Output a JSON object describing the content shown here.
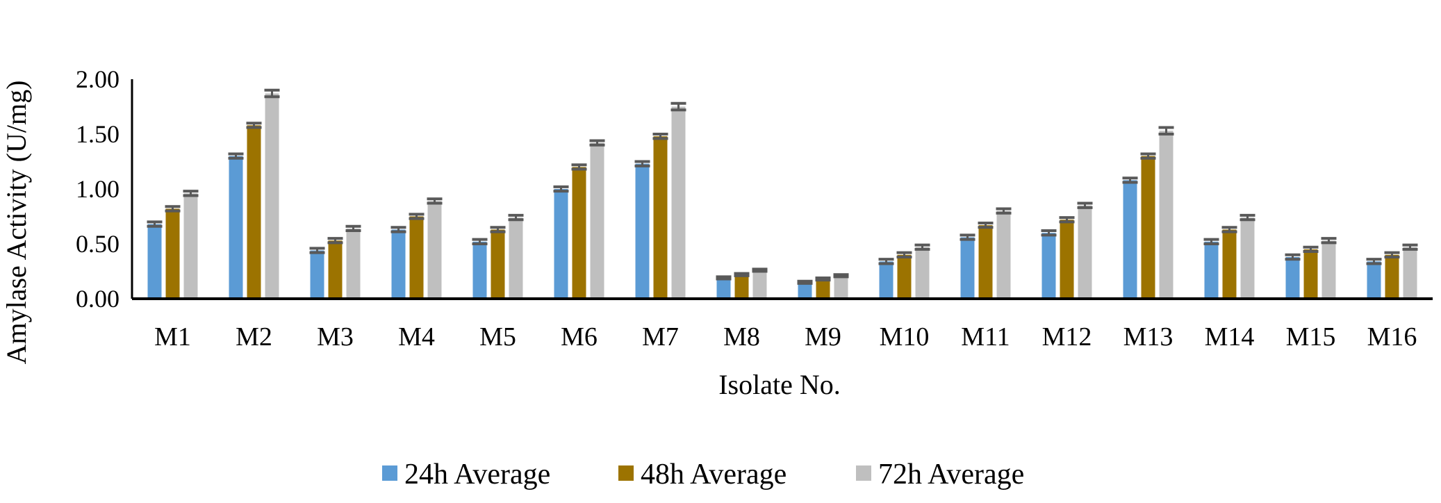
{
  "chart_data": {
    "type": "bar",
    "title": "",
    "xlabel": "Isolate No.",
    "ylabel": "Amylase Activity (U/mg)",
    "ylim": [
      0,
      2
    ],
    "yticks": [
      "0.00",
      "0.50",
      "1.00",
      "1.50",
      "2.00"
    ],
    "grid": false,
    "legend_position": "bottom",
    "error_bars": true,
    "categories": [
      "M1",
      "M2",
      "M3",
      "M4",
      "M5",
      "M6",
      "M7",
      "M8",
      "M9",
      "M10",
      "M11",
      "M12",
      "M13",
      "M14",
      "M15",
      "M16"
    ],
    "series": [
      {
        "name": "24h Average",
        "color": "#5b9bd5",
        "values": [
          0.68,
          1.3,
          0.44,
          0.63,
          0.52,
          1.0,
          1.23,
          0.19,
          0.15,
          0.34,
          0.56,
          0.6,
          1.08,
          0.52,
          0.38,
          0.34
        ],
        "errors": [
          0.02,
          0.02,
          0.02,
          0.02,
          0.02,
          0.02,
          0.02,
          0.01,
          0.01,
          0.02,
          0.02,
          0.02,
          0.02,
          0.02,
          0.02,
          0.02
        ]
      },
      {
        "name": "48h Average",
        "color": "#9c7300",
        "values": [
          0.82,
          1.58,
          0.53,
          0.75,
          0.63,
          1.2,
          1.48,
          0.22,
          0.18,
          0.4,
          0.67,
          0.72,
          1.3,
          0.63,
          0.45,
          0.4
        ],
        "errors": [
          0.02,
          0.02,
          0.02,
          0.02,
          0.02,
          0.02,
          0.02,
          0.01,
          0.01,
          0.02,
          0.02,
          0.02,
          0.02,
          0.02,
          0.02,
          0.02
        ]
      },
      {
        "name": "72h Average",
        "color": "#bfbfbf",
        "values": [
          0.96,
          1.87,
          0.64,
          0.89,
          0.74,
          1.42,
          1.75,
          0.26,
          0.21,
          0.47,
          0.8,
          0.85,
          1.53,
          0.74,
          0.53,
          0.47
        ],
        "errors": [
          0.02,
          0.03,
          0.02,
          0.02,
          0.02,
          0.02,
          0.03,
          0.01,
          0.01,
          0.02,
          0.02,
          0.02,
          0.03,
          0.02,
          0.02,
          0.02
        ]
      }
    ]
  }
}
